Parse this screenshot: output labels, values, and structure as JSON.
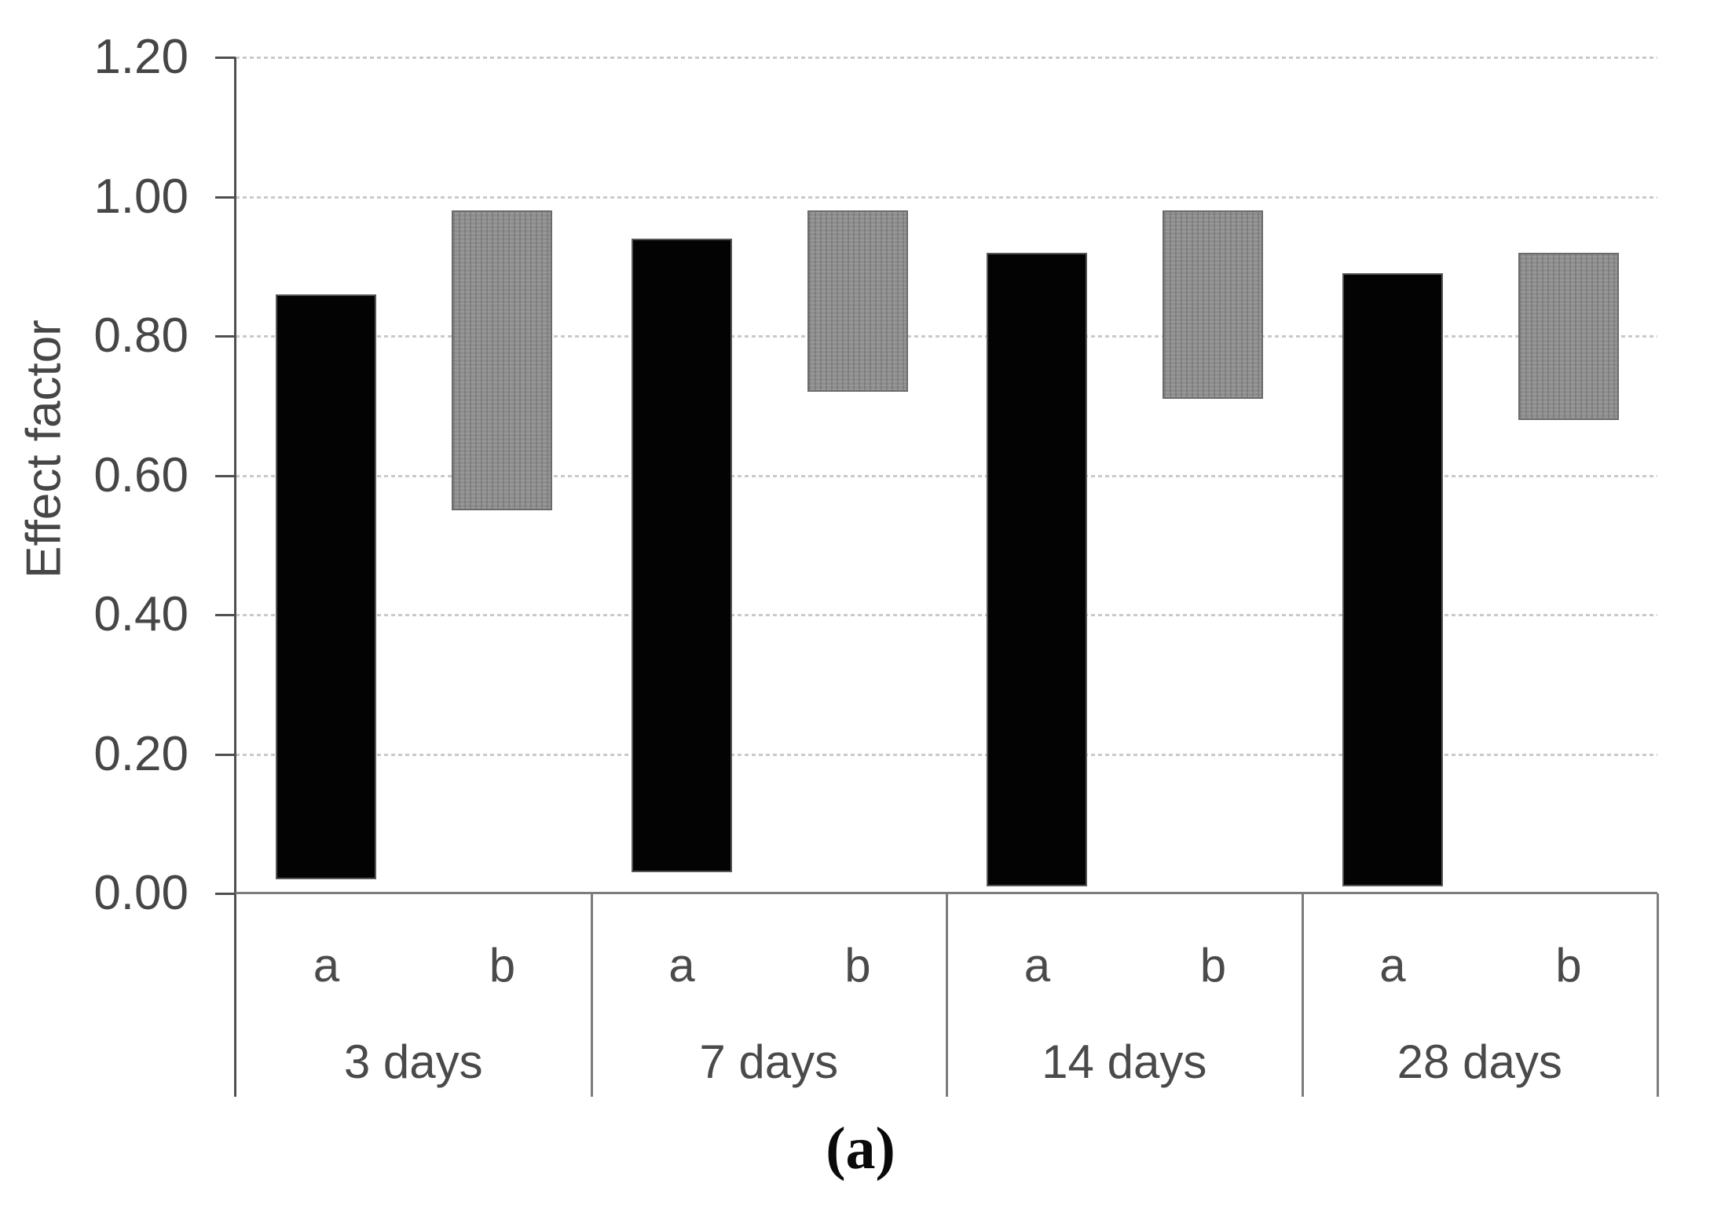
{
  "figure": {
    "caption": "(a)"
  },
  "chart_data": {
    "type": "bar",
    "subtype": "floating-column-ranges",
    "title": "",
    "xlabel": "",
    "ylabel": "Effect factor",
    "ylim": [
      0.0,
      1.2
    ],
    "ytick_step": 0.2,
    "ytick_labels": [
      "0.00",
      "0.20",
      "0.40",
      "0.60",
      "0.80",
      "1.00",
      "1.20"
    ],
    "grid": "horizontal dotted gridlines every 0.20, drawn behind bars",
    "legend": "none",
    "categories": [
      "3 days",
      "7 days",
      "14 days",
      "28 days"
    ],
    "sub_categories": [
      "a",
      "b"
    ],
    "series": [
      {
        "name": "a",
        "fill": "solid-black",
        "ranges": [
          {
            "low": 0.02,
            "high": 0.86
          },
          {
            "low": 0.03,
            "high": 0.94
          },
          {
            "low": 0.01,
            "high": 0.92
          },
          {
            "low": 0.01,
            "high": 0.89
          }
        ]
      },
      {
        "name": "b",
        "fill": "textured-gray",
        "ranges": [
          {
            "low": 0.55,
            "high": 0.98
          },
          {
            "low": 0.72,
            "high": 0.98
          },
          {
            "low": 0.71,
            "high": 0.98
          },
          {
            "low": 0.68,
            "high": 0.92
          }
        ]
      }
    ],
    "colors": {
      "bar_a_fill": "#030303",
      "bar_b_fill": "#8d8d8d",
      "bar_b_border": "#6b6b6b",
      "y_axis": "#4f4f4f",
      "x_axis_and_dividers": "#7d7d7d",
      "gridline": "#cacaca",
      "text": "#464646",
      "background": "#ffffff"
    }
  }
}
